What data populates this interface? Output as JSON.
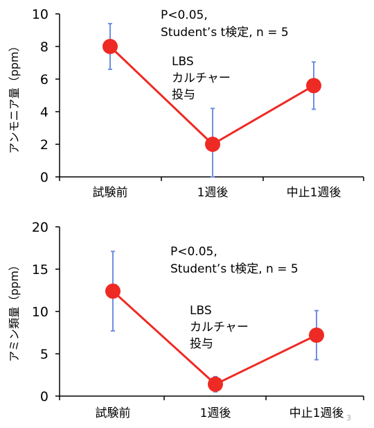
{
  "chart_data": [
    {
      "type": "line",
      "ylabel": "アンモニア量（ppm）",
      "categories": [
        "試験前",
        "1週後",
        "中止1週後"
      ],
      "ylim": [
        0,
        10
      ],
      "yticks": [
        0,
        2,
        4,
        6,
        8,
        10
      ],
      "series": [
        {
          "values": [
            8.0,
            2.0,
            5.6
          ],
          "error": [
            1.4,
            2.2,
            1.45
          ]
        }
      ],
      "annotations": {
        "stats": [
          "P<0.05,",
          "Student’s t検定, n = 5"
        ],
        "treatment": [
          "LBS",
          "カルチャー",
          "投与"
        ]
      }
    },
    {
      "type": "line",
      "ylabel": "アミン類量（ppm）",
      "categories": [
        "試験前",
        "1週後",
        "中止1週後"
      ],
      "ylim": [
        0,
        20
      ],
      "yticks": [
        0,
        5,
        10,
        15,
        20
      ],
      "series": [
        {
          "values": [
            12.4,
            1.4,
            7.2
          ],
          "error": [
            4.7,
            0.9,
            2.9
          ]
        }
      ],
      "annotations": {
        "stats": [
          "P<0.05,",
          "Student’s t検定, n = 5"
        ],
        "treatment": [
          "LBS",
          "カルチャー",
          "投与"
        ]
      }
    }
  ],
  "colors": {
    "line": "#ee2a24",
    "marker": "#ee2a24",
    "errorbar": "#6e8fe0",
    "axis": "#000000"
  },
  "page_number": "3"
}
